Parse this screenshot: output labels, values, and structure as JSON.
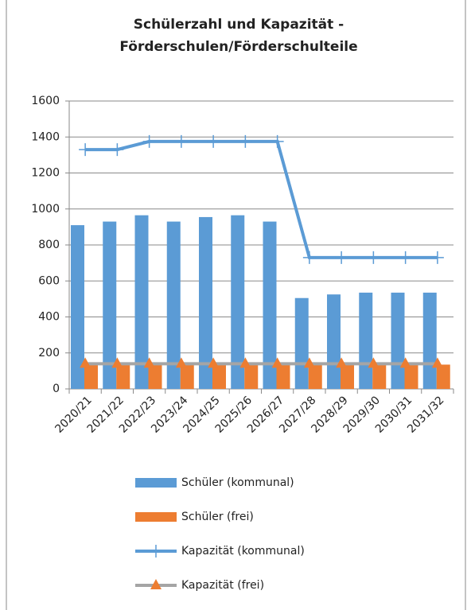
{
  "chart_data": {
    "type": "bar",
    "title": [
      "Schülerzahl und Kapazität -",
      "Förderschulen/Förderschulteile"
    ],
    "categories": [
      "2020/21",
      "2021/22",
      "2022/23",
      "2023/24",
      "2024/25",
      "2025/26",
      "2026/27",
      "2027/28",
      "2028/29",
      "2029/30",
      "2030/31",
      "2031/32"
    ],
    "series": [
      {
        "name": "Schüler (kommunal)",
        "type": "bar",
        "color": "#5b9bd5",
        "values": [
          910,
          930,
          965,
          930,
          955,
          965,
          930,
          505,
          525,
          535,
          535,
          535
        ]
      },
      {
        "name": "Schüler (frei)",
        "type": "bar",
        "color": "#ed7d31",
        "values": [
          140,
          140,
          140,
          140,
          140,
          140,
          140,
          140,
          140,
          140,
          140,
          135
        ]
      },
      {
        "name": "Kapazität (kommunal)",
        "type": "line",
        "marker": "plus",
        "color": "#5b9bd5",
        "values": [
          1330,
          1330,
          1375,
          1375,
          1375,
          1375,
          1375,
          730,
          730,
          730,
          730,
          730
        ]
      },
      {
        "name": "Kapazität (frei)",
        "type": "line",
        "marker": "triangle",
        "color": "#a5a5a5",
        "marker_color": "#ed7d31",
        "values": [
          140,
          140,
          140,
          140,
          140,
          140,
          140,
          140,
          140,
          140,
          140,
          140
        ]
      }
    ],
    "ylim": [
      0,
      1600
    ],
    "yticks": [
      0,
      200,
      400,
      600,
      800,
      1000,
      1200,
      1400,
      1600
    ],
    "grid": true,
    "legend": "bottom"
  }
}
